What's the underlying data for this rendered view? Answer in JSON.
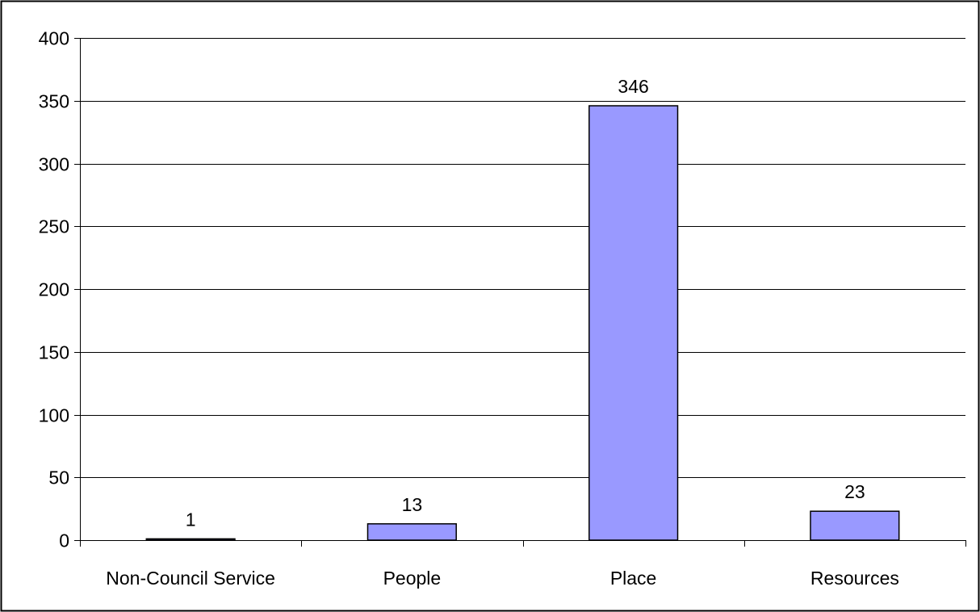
{
  "chart_data": {
    "type": "bar",
    "title": "",
    "xlabel": "",
    "ylabel": "",
    "categories": [
      "Non-Council Service",
      "People",
      "Place",
      "Resources"
    ],
    "values": [
      1,
      13,
      346,
      23
    ],
    "data_labels": [
      "1",
      "13",
      "346",
      "23"
    ],
    "ylim": [
      0,
      400
    ],
    "yticks": [
      0,
      50,
      100,
      150,
      200,
      250,
      300,
      350,
      400
    ],
    "ytick_labels": [
      "0",
      "50",
      "100",
      "150",
      "200",
      "250",
      "300",
      "350",
      "400"
    ],
    "grid": true,
    "legend": "none",
    "colors": {
      "bar_fill": "#9999ff",
      "bar_stroke": "#000000",
      "grid": "#000000",
      "background": "#ffffff"
    }
  }
}
